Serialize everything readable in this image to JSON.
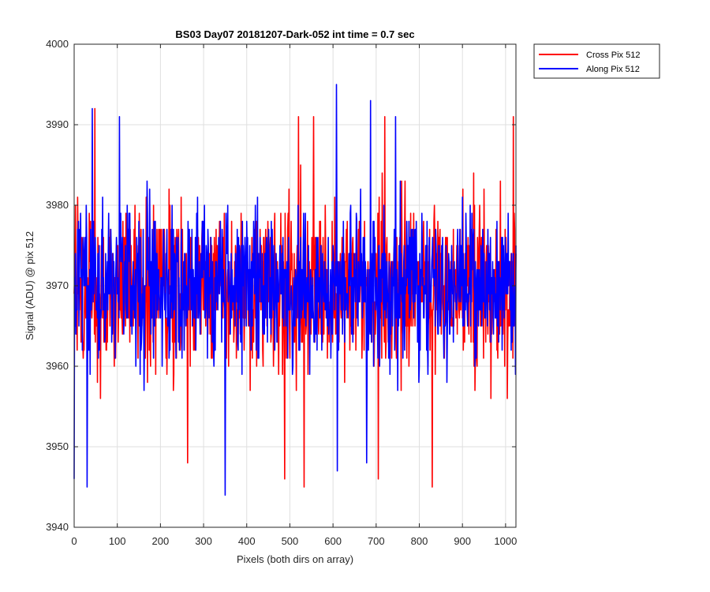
{
  "chart_data": {
    "type": "line",
    "title": "BS03 Day07 20181207-Dark-052 int time = 0.7 sec",
    "xlabel": "Pixels (both dirs on array)",
    "ylabel": "Signal (ADU) @ pix 512",
    "xlim": [
      0,
      1024
    ],
    "ylim": [
      3940,
      4000
    ],
    "xticks": [
      0,
      100,
      200,
      300,
      400,
      500,
      600,
      700,
      800,
      900,
      1000
    ],
    "yticks": [
      3940,
      3950,
      3960,
      3970,
      3980,
      3990,
      4000
    ],
    "xtick_labels": [
      "0",
      "100",
      "200",
      "300",
      "400",
      "500",
      "600",
      "700",
      "800",
      "900",
      "1000"
    ],
    "ytick_labels": [
      "3940",
      "3950",
      "3960",
      "3970",
      "3980",
      "3990",
      "4000"
    ],
    "grid": true,
    "legend_position": "outside-top-right",
    "series": [
      {
        "name": "Cross Pix 512",
        "color": "#ff0000",
        "summary": {
          "approx_mean": 3969.5,
          "approx_min": 3945,
          "approx_max": 3992
        },
        "peaks": [
          [
            48,
            3992
          ],
          [
            520,
            3991
          ],
          [
            555,
            3991
          ],
          [
            720,
            3991
          ],
          [
            1018,
            3991
          ]
        ],
        "troughs": [
          [
            263,
            3948
          ],
          [
            488,
            3946
          ],
          [
            533,
            3945
          ],
          [
            705,
            3946
          ],
          [
            830,
            3945
          ]
        ]
      },
      {
        "name": "Along Pix 512",
        "color": "#0000ff",
        "summary": {
          "approx_mean": 3970,
          "approx_min": 3944,
          "approx_max": 3995
        },
        "peaks": [
          [
            42,
            3992
          ],
          [
            105,
            3991
          ],
          [
            608,
            3995
          ],
          [
            687,
            3993
          ],
          [
            745,
            3991
          ]
        ],
        "troughs": [
          [
            30,
            3945
          ],
          [
            0,
            3946
          ],
          [
            350,
            3944
          ],
          [
            610,
            3947
          ],
          [
            678,
            3948
          ]
        ]
      }
    ]
  }
}
